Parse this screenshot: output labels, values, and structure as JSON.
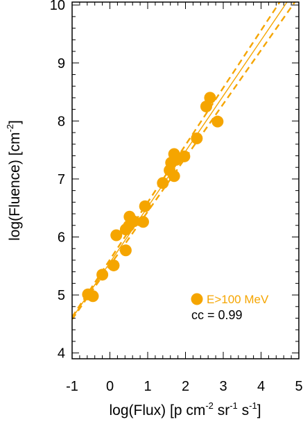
{
  "chart_data": {
    "type": "scatter",
    "xlabel": "log(Flux) [p cm-2 sr-1 s-1]",
    "xlabel_parts": {
      "prefix": "log(Flux) [p cm",
      "exp1": "-2",
      "mid1": " sr",
      "exp2": "-1",
      "mid2": " s",
      "exp3": "-1",
      "suffix": "]"
    },
    "ylabel": "log(Fluence) [cm-2]",
    "ylabel_parts": {
      "prefix": "log(Fluence) [cm",
      "exp1": "-2",
      "suffix": "]"
    },
    "xlim": [
      -1,
      5
    ],
    "ylim": [
      3.9,
      10.05
    ],
    "xticks": [
      "-1",
      "0",
      "1",
      "2",
      "3",
      "4",
      "5"
    ],
    "yticks": [
      "4",
      "5",
      "6",
      "7",
      "8",
      "9",
      "10"
    ],
    "color": "#f5a500",
    "series": [
      {
        "name": "E>100 MeV",
        "points": [
          [
            -0.58,
            5.01
          ],
          [
            -0.45,
            4.98
          ],
          [
            -0.2,
            5.35
          ],
          [
            0.1,
            5.51
          ],
          [
            0.17,
            6.03
          ],
          [
            0.42,
            5.77
          ],
          [
            0.42,
            6.13
          ],
          [
            0.5,
            6.19
          ],
          [
            0.52,
            6.35
          ],
          [
            0.63,
            6.27
          ],
          [
            0.88,
            6.26
          ],
          [
            0.93,
            6.53
          ],
          [
            1.4,
            6.93
          ],
          [
            1.58,
            7.15
          ],
          [
            1.62,
            7.28
          ],
          [
            1.7,
            7.05
          ],
          [
            1.7,
            7.43
          ],
          [
            1.75,
            7.33
          ],
          [
            1.97,
            7.39
          ],
          [
            2.3,
            7.7
          ],
          [
            2.55,
            8.25
          ],
          [
            2.65,
            8.4
          ],
          [
            2.85,
            7.99
          ]
        ]
      }
    ],
    "fit": {
      "center": [
        [
          -1,
          4.6
        ],
        [
          5,
          10.35
        ]
      ],
      "upper": [
        [
          -1,
          4.62
        ],
        [
          5,
          10.55
        ]
      ],
      "lower": [
        [
          -1,
          4.58
        ],
        [
          5,
          10.15
        ]
      ]
    },
    "legend": {
      "label": "E>100 MeV",
      "placement": "bottom-right"
    },
    "annotation": "cc = 0.99"
  }
}
